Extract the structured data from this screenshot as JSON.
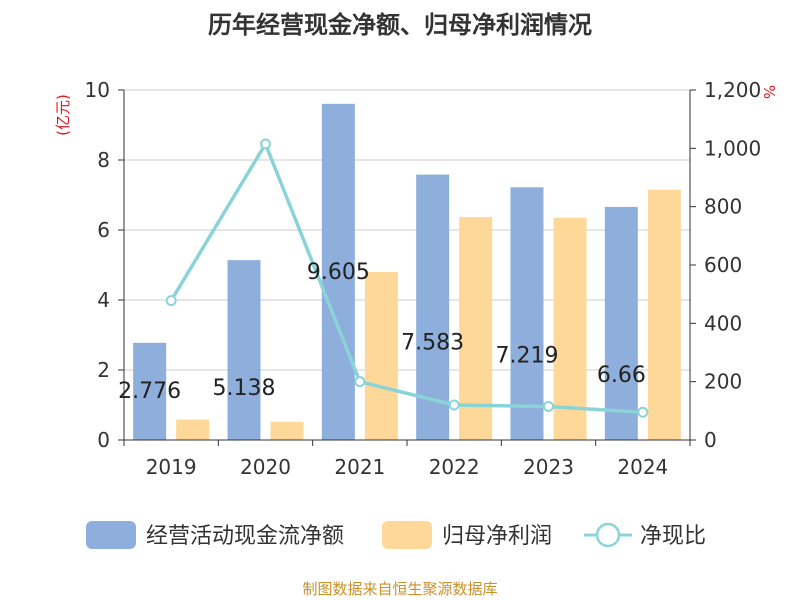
{
  "chart_data": {
    "type": "bar+line",
    "title": "历年经营现金净额、归母净利润情况",
    "categories": [
      "2019",
      "2020",
      "2021",
      "2022",
      "2023",
      "2024"
    ],
    "left_axis": {
      "unit": "(亿元)",
      "ylim": [
        0,
        10
      ],
      "ticks": [
        "0",
        "2",
        "4",
        "6",
        "8",
        "10"
      ]
    },
    "right_axis": {
      "unit": "%",
      "ylim": [
        0,
        1200
      ],
      "ticks": [
        "0",
        "200",
        "400",
        "600",
        "800",
        "1,000",
        "1,200"
      ]
    },
    "grid": true,
    "series": [
      {
        "name": "经营活动现金流净额",
        "type": "bar",
        "axis": "left",
        "color": "#8eaedc",
        "values": [
          2.776,
          5.138,
          9.605,
          7.583,
          7.219,
          6.66
        ],
        "labels": [
          "2.776",
          "5.138",
          "9.605",
          "7.583",
          "7.219",
          "6.66"
        ]
      },
      {
        "name": "归母净利润",
        "type": "bar",
        "axis": "left",
        "color": "#fdd898",
        "values": [
          0.58,
          0.52,
          4.8,
          6.37,
          6.35,
          7.15
        ]
      },
      {
        "name": "净现比",
        "type": "line",
        "axis": "right",
        "color": "#8ad4d8",
        "values": [
          478,
          1015,
          200,
          120,
          115,
          95
        ]
      }
    ],
    "legend_position": "bottom"
  },
  "footer": {
    "source": "制图数据来自恒生聚源数据库"
  },
  "colors": {
    "title": "#333333",
    "unit": "#e8131c",
    "axis_text": "#333333",
    "footer": "#c9912a"
  }
}
